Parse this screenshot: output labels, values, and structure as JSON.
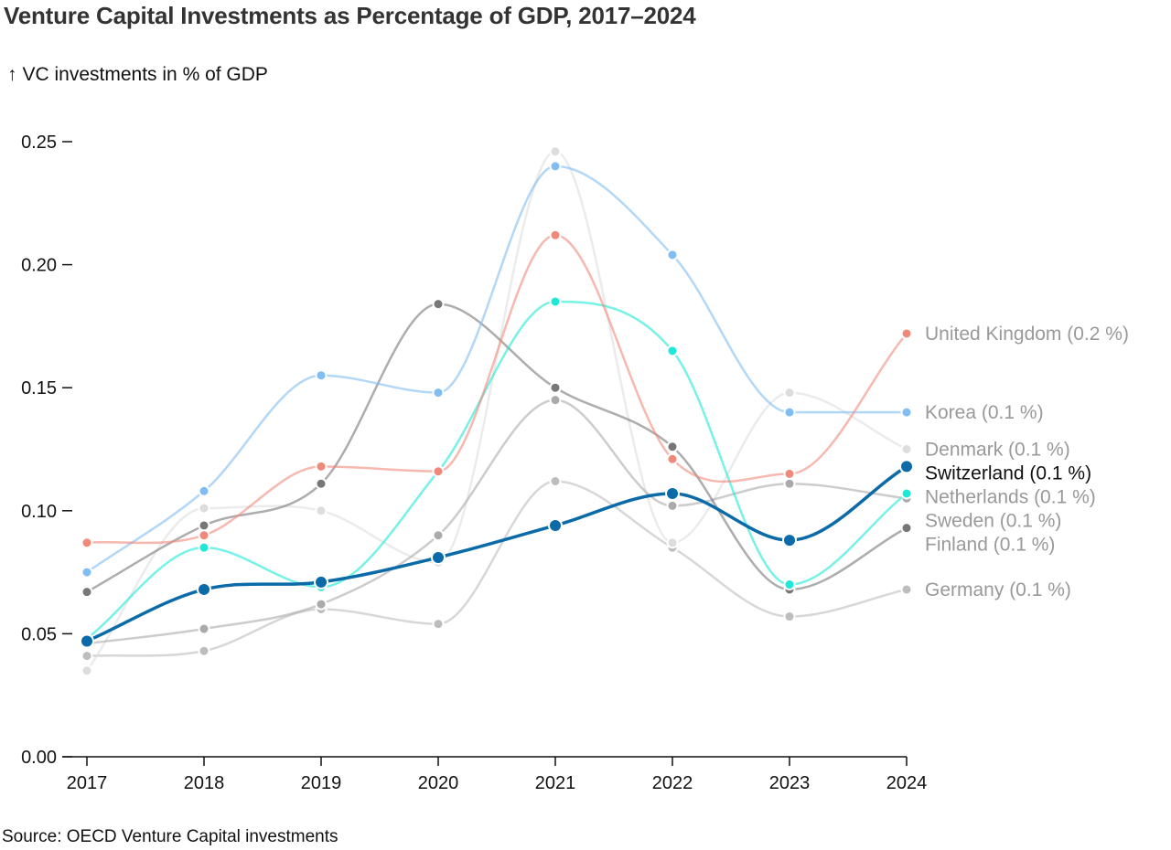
{
  "chart_data": {
    "type": "line",
    "title": "Venture Capital Investments as Percentage of GDP, 2017–2024",
    "ylabel": "VC investments in % of GDP",
    "ylabel_arrow": "↑",
    "source": "Source: OECD Venture Capital investments",
    "x": [
      "2017",
      "2018",
      "2019",
      "2020",
      "2021",
      "2022",
      "2023",
      "2024"
    ],
    "ylim": [
      0,
      0.25
    ],
    "yticks": [
      "0.00",
      "0.05",
      "0.10",
      "0.15",
      "0.20",
      "0.25"
    ],
    "grid": false,
    "curve": "smooth",
    "highlight": "Switzerland",
    "series": [
      {
        "name": "Germany",
        "label": "Germany (0.1 %)",
        "color": "#bdbdbd",
        "values": [
          0.041,
          0.043,
          0.06,
          0.054,
          0.112,
          0.085,
          0.057,
          0.068
        ]
      },
      {
        "name": "Denmark",
        "label": "Denmark (0.1 %)",
        "color": "#dddddd",
        "values": [
          0.035,
          0.101,
          0.1,
          0.079,
          0.246,
          0.087,
          0.148,
          0.125
        ]
      },
      {
        "name": "Sweden",
        "label": "Sweden (0.1 %)",
        "color": "#aaaaaa",
        "values": [
          0.046,
          0.052,
          0.062,
          0.09,
          0.145,
          0.102,
          0.111,
          0.105
        ]
      },
      {
        "name": "Finland",
        "label": "Finland (0.1 %)",
        "color": "#777777",
        "values": [
          0.067,
          0.094,
          0.111,
          0.184,
          0.15,
          0.126,
          0.068,
          0.093
        ]
      },
      {
        "name": "Korea",
        "label": "Korea (0.1 %)",
        "color": "#7fbdf2",
        "values": [
          0.075,
          0.108,
          0.155,
          0.148,
          0.24,
          0.204,
          0.14,
          0.14
        ]
      },
      {
        "name": "Netherlands",
        "label": "Netherlands (0.1 %)",
        "color": "#1de9d6",
        "values": [
          0.048,
          0.085,
          0.069,
          0.116,
          0.185,
          0.165,
          0.07,
          0.107
        ]
      },
      {
        "name": "United Kingdom",
        "label": "United Kingdom (0.2 %)",
        "color": "#f0897a",
        "values": [
          0.087,
          0.09,
          0.118,
          0.116,
          0.212,
          0.121,
          0.115,
          0.172
        ]
      },
      {
        "name": "Switzerland",
        "label": "Switzerland (0.1 %)",
        "color": "#0b6aa8",
        "values": [
          0.047,
          0.068,
          0.071,
          0.081,
          0.094,
          0.107,
          0.088,
          0.118
        ]
      }
    ]
  }
}
